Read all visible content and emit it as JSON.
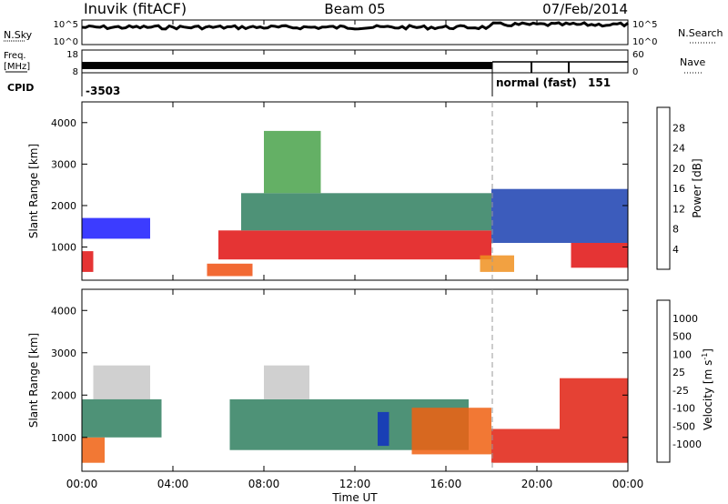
{
  "header": {
    "station": "Inuvik (fitACF)",
    "beam": "Beam 05",
    "date": "07/Feb/2014"
  },
  "top_panels": {
    "nsky_label": "N.Sky",
    "nsky_ticks": [
      "10^5",
      "10^0"
    ],
    "nsearch_label": "N.Search",
    "nsearch_ticks": [
      "10^5",
      "10^0"
    ],
    "freq_label": "Freq.",
    "freq_unit": "[MHz]",
    "freq_ticks": [
      "18",
      "8"
    ],
    "nave_label": "Nave",
    "nave_ticks": [
      "60",
      "0"
    ],
    "cpid_label": "CPID",
    "cpid_value": "-3503",
    "cpid_mode": "normal (fast)",
    "cpid_mode_value": "151"
  },
  "x_axis": {
    "label": "Time UT",
    "ticks": [
      "00:00",
      "04:00",
      "08:00",
      "12:00",
      "16:00",
      "20:00",
      "00:00"
    ]
  },
  "power_panel": {
    "ylabel": "Slant Range [km]",
    "yticks": [
      "4000",
      "3000",
      "2000",
      "1000"
    ],
    "colorbar_label": "Power [dB]",
    "colorbar_ticks": [
      "28",
      "24",
      "20",
      "16",
      "12",
      "8",
      "4"
    ],
    "colors": [
      "#1a1aff",
      "#1a3fb0",
      "#2f7f5f",
      "#49a24a",
      "#e0c020",
      "#f09020",
      "#f05010",
      "#e01010"
    ]
  },
  "velocity_panel": {
    "ylabel": "Slant Range [km]",
    "yticks": [
      "4000",
      "3000",
      "2000",
      "1000"
    ],
    "colorbar_label": "Velocity [m s",
    "colorbar_label_sup": "-1",
    "colorbar_label_end": "]",
    "colorbar_ticks": [
      "1000",
      "500",
      "100",
      "25",
      "-25",
      "-100",
      "-500",
      "-1000"
    ],
    "colors": [
      "#1030c0",
      "#2f5fa0",
      "#2f7f5f",
      "#49b040",
      "#c8c8c8",
      "#f09020",
      "#f06010",
      "#e02010",
      "#ff0000"
    ]
  },
  "chart_data": [
    {
      "type": "heatmap",
      "title": "Power",
      "xlabel": "Time UT",
      "ylabel": "Slant Range [km]",
      "xlim": [
        0,
        24
      ],
      "ylim": [
        200,
        4500
      ],
      "colorbar": "Power [dB]",
      "colorbar_range": [
        3,
        30
      ],
      "regions": [
        {
          "t_start": 0.0,
          "t_end": 0.5,
          "r_start": 400,
          "r_end": 900,
          "value": 28
        },
        {
          "t_start": 0.0,
          "t_end": 3.0,
          "r_start": 1200,
          "r_end": 1700,
          "value": 6
        },
        {
          "t_start": 5.5,
          "t_end": 7.5,
          "r_start": 300,
          "r_end": 600,
          "value": 26
        },
        {
          "t_start": 6.0,
          "t_end": 18.0,
          "r_start": 700,
          "r_end": 1400,
          "value": 28
        },
        {
          "t_start": 7.0,
          "t_end": 18.0,
          "r_start": 1400,
          "r_end": 2300,
          "value": 10
        },
        {
          "t_start": 8.0,
          "t_end": 10.5,
          "r_start": 2300,
          "r_end": 3800,
          "value": 14
        },
        {
          "t_start": 17.5,
          "t_end": 19.0,
          "r_start": 400,
          "r_end": 800,
          "value": 22
        },
        {
          "t_start": 21.5,
          "t_end": 24.0,
          "r_start": 500,
          "r_end": 1100,
          "value": 28
        },
        {
          "t_start": 18.0,
          "t_end": 24.0,
          "r_start": 1100,
          "r_end": 2400,
          "value": 8
        }
      ]
    },
    {
      "type": "heatmap",
      "title": "Velocity",
      "xlabel": "Time UT",
      "ylabel": "Slant Range [km]",
      "xlim": [
        0,
        24
      ],
      "ylim": [
        200,
        4500
      ],
      "colorbar": "Velocity [m s-1]",
      "colorbar_range": [
        -1000,
        1000
      ],
      "regions": [
        {
          "t_start": 0.0,
          "t_end": 1.0,
          "r_start": 400,
          "r_end": 1000,
          "value": -200
        },
        {
          "t_start": 0.5,
          "t_end": 3.0,
          "r_start": 1900,
          "r_end": 2700,
          "value": 0
        },
        {
          "t_start": 0.0,
          "t_end": 3.5,
          "r_start": 1000,
          "r_end": 1900,
          "value": 100
        },
        {
          "t_start": 6.5,
          "t_end": 17.0,
          "r_start": 700,
          "r_end": 1900,
          "value": 150
        },
        {
          "t_start": 8.0,
          "t_end": 10.0,
          "r_start": 1900,
          "r_end": 2700,
          "value": 0
        },
        {
          "t_start": 13.0,
          "t_end": 13.5,
          "r_start": 800,
          "r_end": 1600,
          "value": 800
        },
        {
          "t_start": 14.5,
          "t_end": 18.0,
          "r_start": 600,
          "r_end": 1700,
          "value": -150
        },
        {
          "t_start": 18.0,
          "t_end": 24.0,
          "r_start": 400,
          "r_end": 1200,
          "value": -300
        },
        {
          "t_start": 21.0,
          "t_end": 24.0,
          "r_start": 1200,
          "r_end": 2400,
          "value": -600
        }
      ]
    }
  ]
}
